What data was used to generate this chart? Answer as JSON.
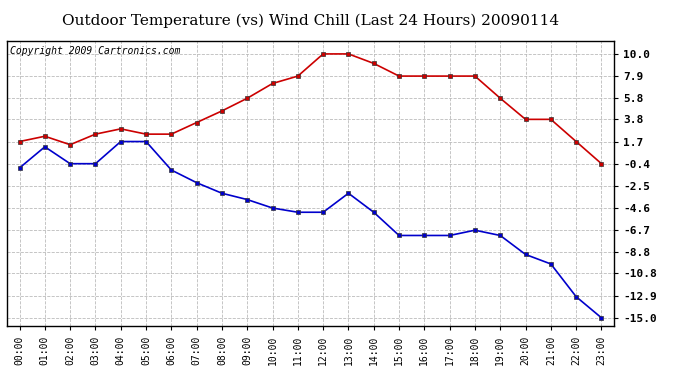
{
  "title": "Outdoor Temperature (vs) Wind Chill (Last 24 Hours) 20090114",
  "copyright": "Copyright 2009 Cartronics.com",
  "hours": [
    "00:00",
    "01:00",
    "02:00",
    "03:00",
    "04:00",
    "05:00",
    "06:00",
    "07:00",
    "08:00",
    "09:00",
    "10:00",
    "11:00",
    "12:00",
    "13:00",
    "14:00",
    "15:00",
    "16:00",
    "17:00",
    "18:00",
    "19:00",
    "20:00",
    "21:00",
    "22:00",
    "23:00"
  ],
  "temp": [
    1.7,
    2.2,
    1.4,
    2.4,
    2.9,
    2.4,
    2.4,
    3.5,
    4.6,
    5.8,
    7.2,
    7.9,
    10.0,
    10.0,
    9.1,
    7.9,
    7.9,
    7.9,
    7.9,
    5.8,
    3.8,
    3.8,
    1.7,
    -0.4
  ],
  "windchill": [
    -0.8,
    1.2,
    -0.4,
    -0.4,
    1.7,
    1.7,
    -1.0,
    -2.2,
    -3.2,
    -3.8,
    -4.6,
    -5.0,
    -5.0,
    -3.2,
    -5.0,
    -7.2,
    -7.2,
    -7.2,
    -6.7,
    -7.2,
    -9.0,
    -9.9,
    -13.0,
    -15.0
  ],
  "temp_color": "#cc0000",
  "windchill_color": "#0000cc",
  "marker": "s",
  "marker_size": 2.5,
  "line_width": 1.2,
  "yticks": [
    10.0,
    7.9,
    5.8,
    3.8,
    1.7,
    -0.4,
    -2.5,
    -4.6,
    -6.7,
    -8.8,
    -10.8,
    -12.9,
    -15.0
  ],
  "grid_color": "#bbbbbb",
  "bg_color": "#ffffff",
  "title_fontsize": 11,
  "copyright_fontsize": 7,
  "tick_fontsize": 7,
  "ytick_fontsize": 8
}
